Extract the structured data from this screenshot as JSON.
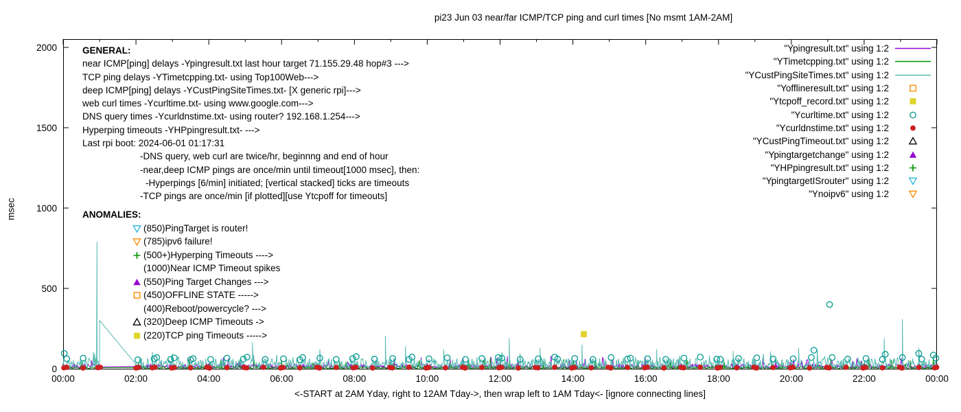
{
  "general": {
    "heading": "GENERAL:",
    "lines": [
      {
        "indent": 0,
        "text": "near ICMP[ping] delays -Ypingresult.txt last hour target 71.155.29.48 hop#3 --->"
      },
      {
        "indent": 0,
        "text": "TCP ping delays -YTimetcpping.txt- using Top100Web--->"
      },
      {
        "indent": 0,
        "text": "deep ICMP[ping] delays -YCustPingSiteTimes.txt- [X generic rpi]--->"
      },
      {
        "indent": 0,
        "text": "web curl times -Ycurltime.txt- using www.google.com--->"
      },
      {
        "indent": 0,
        "text": "DNS query times -Ycurldnstime.txt- using router? 192.168.1.254--->"
      },
      {
        "indent": 0,
        "text": "Hyperping timeouts -YHPpingresult.txt- --->"
      },
      {
        "indent": 0,
        "text": "Last rpi boot: 2024-06-01 01:17:31"
      },
      {
        "indent": 1,
        "text": "-DNS query, web curl are twice/hr, beginnng and end of hour"
      },
      {
        "indent": 1,
        "text": "-near,deep ICMP pings are once/min until timeout[1000 msec], then:"
      },
      {
        "indent": 2,
        "text": "-Hyperpings [6/min] initiated; [vertical stacked] ticks are timeouts"
      },
      {
        "indent": 1,
        "text": "-TCP pings are once/min [if plotted][use Ytcpoff for timeouts]"
      }
    ]
  },
  "anomalies": {
    "heading": "ANOMALIES:",
    "items": [
      {
        "symbol": "triangle-down-open",
        "color": "#29b6d8",
        "text": "(850)PingTarget is router!"
      },
      {
        "symbol": "triangle-down-open",
        "color": "#ff8c00",
        "text": "(785)ipv6 failure!"
      },
      {
        "symbol": "plus",
        "color": "#009100",
        "text": "(500+)Hyperping Timeouts ---->"
      },
      {
        "symbol": "none",
        "color": "",
        "text": "(1000)Near ICMP Timeout spikes"
      },
      {
        "symbol": "triangle-filled",
        "color": "#9400d3",
        "text": "(550)Ping Target Changes --->"
      },
      {
        "symbol": "square-open",
        "color": "#ff8c00",
        "text": "(450)OFFLINE STATE ----->"
      },
      {
        "symbol": "none",
        "color": "",
        "text": "(400)Reboot/powercycle? --->"
      },
      {
        "symbol": "triangle-open",
        "color": "#000000",
        "text": "(320)Deep ICMP Timeouts ->"
      },
      {
        "symbol": "square-filled",
        "color": "#ddd32a",
        "text": "(220)TCP ping Timeouts ----->"
      }
    ]
  },
  "legend": [
    {
      "label": "\"Ypingresult.txt\" using 1:2",
      "symbol": "line",
      "color": "#9400d3"
    },
    {
      "label": "\"YTimetcpping.txt\" using 1:2",
      "symbol": "line",
      "color": "#009100"
    },
    {
      "label": "\"YCustPingSiteTimes.txt\" using 1:2",
      "symbol": "line",
      "color": "#57b9b1"
    },
    {
      "label": "\"Yofflineresult.txt\" using 1:2",
      "symbol": "square-open",
      "color": "#ff8c00"
    },
    {
      "label": "\"Ytcpoff_record.txt\" using 1:2",
      "symbol": "square-filled",
      "color": "#ddd32a"
    },
    {
      "label": "\"Ycurltime.txt\" using 1:2",
      "symbol": "circle-open",
      "color": "#0f9e96"
    },
    {
      "label": "\"Ycurldnstime.txt\" using 1:2",
      "symbol": "circle-filled",
      "color": "#cc2020"
    },
    {
      "label": "\"YCustPingTimeout.txt\" using 1:2",
      "symbol": "triangle-open",
      "color": "#000000"
    },
    {
      "label": "\"Ypingtargetchange\" using 1:2",
      "symbol": "triangle-filled",
      "color": "#9400d3"
    },
    {
      "label": "\"YHPpingresult.txt\" using 1:2",
      "symbol": "plus",
      "color": "#009100"
    },
    {
      "label": "\"YpingtargetISrouter\" using 1:2",
      "symbol": "triangle-down-open",
      "color": "#29b6d8"
    },
    {
      "label": "\"Ynoipv6\" using 1:2",
      "symbol": "triangle-down-open",
      "color": "#ff8c00"
    }
  ],
  "chart_data": {
    "type": "line+scatter",
    "title": "pi23 Jun 03  near/far ICMP/TCP ping and curl times [No msmt 1AM-2AM]",
    "xlabel": "<-START at 2AM Yday, right to 12AM Tday->, then wrap left to 1AM Tday<- [ignore connecting lines]",
    "ylabel": "msec",
    "ylim": [
      0,
      2000
    ],
    "yticks": [
      0,
      500,
      1000,
      1500,
      2000
    ],
    "xlim_hours": [
      0,
      24
    ],
    "xticks": [
      {
        "hour": 0,
        "label": "00:00"
      },
      {
        "hour": 2,
        "label": "02:00"
      },
      {
        "hour": 4,
        "label": "04:00"
      },
      {
        "hour": 6,
        "label": "06:00"
      },
      {
        "hour": 8,
        "label": "08:00"
      },
      {
        "hour": 10,
        "label": "10:00"
      },
      {
        "hour": 12,
        "label": "12:00"
      },
      {
        "hour": 14,
        "label": "14:00"
      },
      {
        "hour": 16,
        "label": "16:00"
      },
      {
        "hour": 18,
        "label": "18:00"
      },
      {
        "hour": 20,
        "label": "20:00"
      },
      {
        "hour": 22,
        "label": "22:00"
      },
      {
        "hour": 24,
        "label": "00:00"
      }
    ],
    "no_measurement_gap_hours": [
      1,
      2
    ],
    "series": [
      {
        "name": "Ypingresult.txt (near ICMP ping delays)",
        "style": "line",
        "color": "#9400d3",
        "seed": 7,
        "base": 5,
        "noise": 25,
        "spikes": []
      },
      {
        "name": "YTimetcpping.txt (TCP ping delays)",
        "style": "line",
        "color": "#009100",
        "seed": 11,
        "base": 2,
        "noise": 12,
        "spikes": []
      },
      {
        "name": "YCustPingSiteTimes.txt (deep ICMP ping delays)",
        "style": "line",
        "color": "#57b9b1",
        "seed": 3,
        "base": 8,
        "noise": 58,
        "spikes": [
          [
            0.93,
            790
          ],
          [
            1.001,
            300
          ],
          [
            3.0,
            95
          ],
          [
            5.2,
            165
          ],
          [
            7.05,
            120
          ],
          [
            8.85,
            205
          ],
          [
            9.4,
            140
          ],
          [
            10.45,
            120
          ],
          [
            12.25,
            190
          ],
          [
            13.1,
            130
          ],
          [
            14.25,
            150
          ],
          [
            16.3,
            120
          ],
          [
            18.4,
            110
          ],
          [
            20.2,
            130
          ],
          [
            22.55,
            190
          ],
          [
            23.05,
            310
          ],
          [
            23.5,
            130
          ]
        ]
      },
      {
        "name": "Ycurltime.txt (web curl times)",
        "style": "scatter",
        "symbol": "circle-open",
        "color": "#0f9e96",
        "points": [
          [
            0.03,
            95
          ],
          [
            0.1,
            62
          ],
          [
            0.55,
            66
          ],
          [
            2.05,
            56
          ],
          [
            2.5,
            62
          ],
          [
            2.57,
            70
          ],
          [
            2.95,
            58
          ],
          [
            3.05,
            68
          ],
          [
            3.5,
            56
          ],
          [
            3.57,
            63
          ],
          [
            4.05,
            58
          ],
          [
            4.5,
            66
          ],
          [
            4.95,
            60
          ],
          [
            5.05,
            72
          ],
          [
            5.55,
            58
          ],
          [
            6.05,
            62
          ],
          [
            6.5,
            56
          ],
          [
            6.58,
            70
          ],
          [
            7.05,
            66
          ],
          [
            7.5,
            58
          ],
          [
            7.95,
            63
          ],
          [
            8.05,
            75
          ],
          [
            8.55,
            60
          ],
          [
            9.05,
            64
          ],
          [
            9.5,
            58
          ],
          [
            9.58,
            72
          ],
          [
            10.05,
            62
          ],
          [
            10.55,
            68
          ],
          [
            11.05,
            58
          ],
          [
            11.5,
            64
          ],
          [
            11.95,
            70
          ],
          [
            12.05,
            66
          ],
          [
            12.55,
            58
          ],
          [
            13.05,
            62
          ],
          [
            13.5,
            72
          ],
          [
            13.58,
            60
          ],
          [
            14.05,
            64
          ],
          [
            14.55,
            58
          ],
          [
            15.05,
            70
          ],
          [
            15.5,
            60
          ],
          [
            15.58,
            66
          ],
          [
            16.05,
            62
          ],
          [
            16.55,
            58
          ],
          [
            17.05,
            66
          ],
          [
            17.5,
            72
          ],
          [
            17.95,
            60
          ],
          [
            18.05,
            58
          ],
          [
            18.55,
            64
          ],
          [
            19.05,
            68
          ],
          [
            19.5,
            60
          ],
          [
            20.05,
            62
          ],
          [
            20.55,
            70
          ],
          [
            20.62,
            115
          ],
          [
            21.05,
            400
          ],
          [
            21.12,
            70
          ],
          [
            21.55,
            60
          ],
          [
            22.05,
            64
          ],
          [
            22.5,
            58
          ],
          [
            22.58,
            90
          ],
          [
            23.05,
            70
          ],
          [
            23.5,
            95
          ],
          [
            23.58,
            60
          ],
          [
            23.9,
            85
          ],
          [
            23.97,
            66
          ]
        ]
      },
      {
        "name": "Ycurldnstime.txt (DNS query times)",
        "style": "scatter",
        "symbol": "circle-filled",
        "color": "#cc2020",
        "points": [
          [
            0.02,
            6
          ],
          [
            0.1,
            9
          ],
          [
            0.55,
            5
          ],
          [
            0.95,
            7
          ],
          [
            1.02,
            9
          ],
          [
            2.0,
            5
          ],
          [
            2.07,
            8
          ],
          [
            2.45,
            6
          ],
          [
            2.52,
            9
          ],
          [
            2.98,
            5
          ],
          [
            3.05,
            8
          ],
          [
            3.5,
            6
          ],
          [
            3.95,
            9
          ],
          [
            4.02,
            5
          ],
          [
            4.5,
            7
          ],
          [
            4.97,
            8
          ],
          [
            5.04,
            6
          ],
          [
            5.5,
            9
          ],
          [
            5.97,
            5
          ],
          [
            6.04,
            8
          ],
          [
            6.5,
            6
          ],
          [
            6.97,
            9
          ],
          [
            7.04,
            5
          ],
          [
            7.5,
            8
          ],
          [
            7.97,
            6
          ],
          [
            8.04,
            9
          ],
          [
            8.5,
            5
          ],
          [
            8.97,
            8
          ],
          [
            9.04,
            6
          ],
          [
            9.5,
            9
          ],
          [
            9.97,
            5
          ],
          [
            10.04,
            8
          ],
          [
            10.5,
            6
          ],
          [
            10.97,
            9
          ],
          [
            11.04,
            5
          ],
          [
            11.5,
            8
          ],
          [
            11.97,
            6
          ],
          [
            12.04,
            9
          ],
          [
            12.5,
            5
          ],
          [
            12.97,
            8
          ],
          [
            13.04,
            6
          ],
          [
            13.5,
            9
          ],
          [
            13.97,
            5
          ],
          [
            14.04,
            8
          ],
          [
            14.5,
            6
          ],
          [
            14.97,
            9
          ],
          [
            15.04,
            5
          ],
          [
            15.5,
            8
          ],
          [
            15.97,
            6
          ],
          [
            16.04,
            9
          ],
          [
            16.5,
            5
          ],
          [
            16.97,
            8
          ],
          [
            17.04,
            6
          ],
          [
            17.5,
            9
          ],
          [
            17.97,
            5
          ],
          [
            18.04,
            8
          ],
          [
            18.5,
            6
          ],
          [
            18.97,
            9
          ],
          [
            19.04,
            5
          ],
          [
            19.5,
            8
          ],
          [
            19.97,
            6
          ],
          [
            20.04,
            9
          ],
          [
            20.5,
            5
          ],
          [
            20.97,
            8
          ],
          [
            21.04,
            6
          ],
          [
            21.5,
            9
          ],
          [
            21.97,
            5
          ],
          [
            22.04,
            8
          ],
          [
            22.5,
            6
          ],
          [
            22.97,
            9
          ],
          [
            23.04,
            5
          ],
          [
            23.5,
            8
          ],
          [
            23.94,
            6
          ],
          [
            23.99,
            9
          ]
        ]
      },
      {
        "name": "Ytcpoff_record.txt (TCP ping timeouts)",
        "style": "scatter",
        "symbol": "square-filled",
        "color": "#ddd32a",
        "points": [
          [
            14.3,
            215
          ]
        ]
      }
    ]
  }
}
